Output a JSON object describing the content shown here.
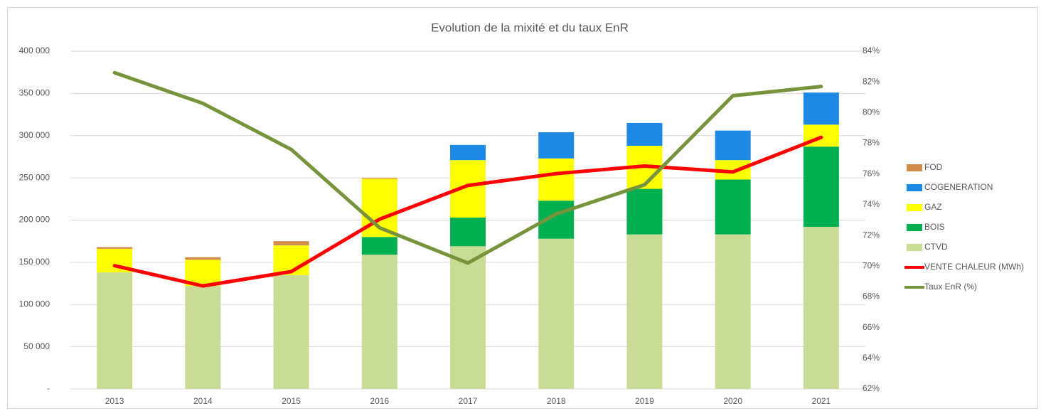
{
  "chart_data": {
    "type": "bar",
    "title": "Evolution de la mixité et du taux EnR",
    "categories": [
      "2013",
      "2014",
      "2015",
      "2016",
      "2017",
      "2018",
      "2019",
      "2020",
      "2021"
    ],
    "series": [
      {
        "name": "CTVD",
        "type": "bar",
        "color": "#c9dc96",
        "values": [
          138000,
          122000,
          135000,
          159000,
          169000,
          178000,
          183000,
          183000,
          192000
        ]
      },
      {
        "name": "BOIS",
        "type": "bar",
        "color": "#00b050",
        "values": [
          0,
          0,
          0,
          21000,
          34000,
          45000,
          54000,
          65000,
          95000
        ]
      },
      {
        "name": "GAZ",
        "type": "bar",
        "color": "#ffff00",
        "values": [
          28000,
          31000,
          35000,
          69000,
          68000,
          50000,
          51000,
          23000,
          26000
        ]
      },
      {
        "name": "COGENERATION",
        "type": "bar",
        "color": "#1e88e5",
        "values": [
          0,
          0,
          0,
          0,
          18000,
          31000,
          27000,
          35000,
          38000
        ]
      },
      {
        "name": "FOD",
        "type": "bar",
        "color": "#d08a4a",
        "values": [
          2000,
          3000,
          5000,
          1000,
          0,
          0,
          0,
          0,
          0
        ]
      },
      {
        "name": "VENTE CHALEUR (MWh)",
        "type": "line",
        "color": "#ff0000",
        "values": [
          146000,
          122000,
          139000,
          201000,
          241000,
          255000,
          264000,
          257000,
          298000
        ]
      },
      {
        "name": "Taux EnR (%)",
        "type": "line",
        "axis": "y2",
        "color": "#77933c",
        "values": [
          82.6,
          80.6,
          77.6,
          72.5,
          70.2,
          73.4,
          75.3,
          81.1,
          81.7
        ]
      }
    ],
    "ylim": [
      0,
      400000
    ],
    "yticks": [
      {
        "value": 0,
        "label": "-"
      },
      {
        "value": 50000,
        "label": "50 000"
      },
      {
        "value": 100000,
        "label": "100 000"
      },
      {
        "value": 150000,
        "label": "150 000"
      },
      {
        "value": 200000,
        "label": "200 000"
      },
      {
        "value": 250000,
        "label": "250 000"
      },
      {
        "value": 300000,
        "label": "300 000"
      },
      {
        "value": 350000,
        "label": "350 000"
      },
      {
        "value": 400000,
        "label": "400 000"
      }
    ],
    "y2lim": [
      62,
      84
    ],
    "y2ticks": [
      {
        "value": 62,
        "label": "62%"
      },
      {
        "value": 64,
        "label": "64%"
      },
      {
        "value": 66,
        "label": "66%"
      },
      {
        "value": 68,
        "label": "68%"
      },
      {
        "value": 70,
        "label": "70%"
      },
      {
        "value": 72,
        "label": "72%"
      },
      {
        "value": 74,
        "label": "74%"
      },
      {
        "value": 76,
        "label": "76%"
      },
      {
        "value": 78,
        "label": "78%"
      },
      {
        "value": 80,
        "label": "80%"
      },
      {
        "value": 82,
        "label": "82%"
      },
      {
        "value": 84,
        "label": "84%"
      }
    ],
    "grid": true,
    "legend": "right"
  }
}
